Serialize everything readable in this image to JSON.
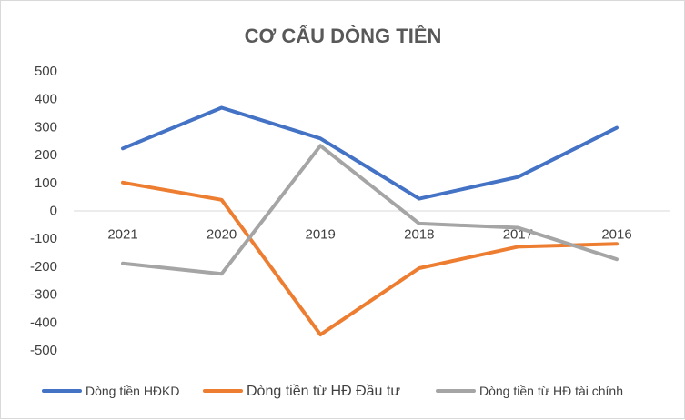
{
  "chart_data": {
    "type": "line",
    "title": "CƠ CẤU DÒNG TIỀN",
    "xlabel": "",
    "ylabel": "",
    "categories": [
      "2021",
      "2020",
      "2019",
      "2018",
      "2017",
      "2016"
    ],
    "ylim": [
      -500,
      500
    ],
    "yticks": [
      500,
      400,
      300,
      200,
      100,
      0,
      -100,
      -200,
      -300,
      -400,
      -500
    ],
    "grid": false,
    "legend_position": "bottom",
    "series": [
      {
        "name": "Dòng tiền HĐKD",
        "color": "#4472c4",
        "values": [
          222,
          368,
          258,
          42,
          120,
          296
        ]
      },
      {
        "name": "Dòng tiền từ HĐ Đầu tư",
        "color": "#ed7d31",
        "values": [
          100,
          38,
          -445,
          -207,
          -130,
          -120
        ]
      },
      {
        "name": "Dòng tiền từ HĐ tài chính",
        "color": "#a5a5a5",
        "values": [
          -190,
          -227,
          232,
          -47,
          -62,
          -175
        ]
      }
    ]
  }
}
